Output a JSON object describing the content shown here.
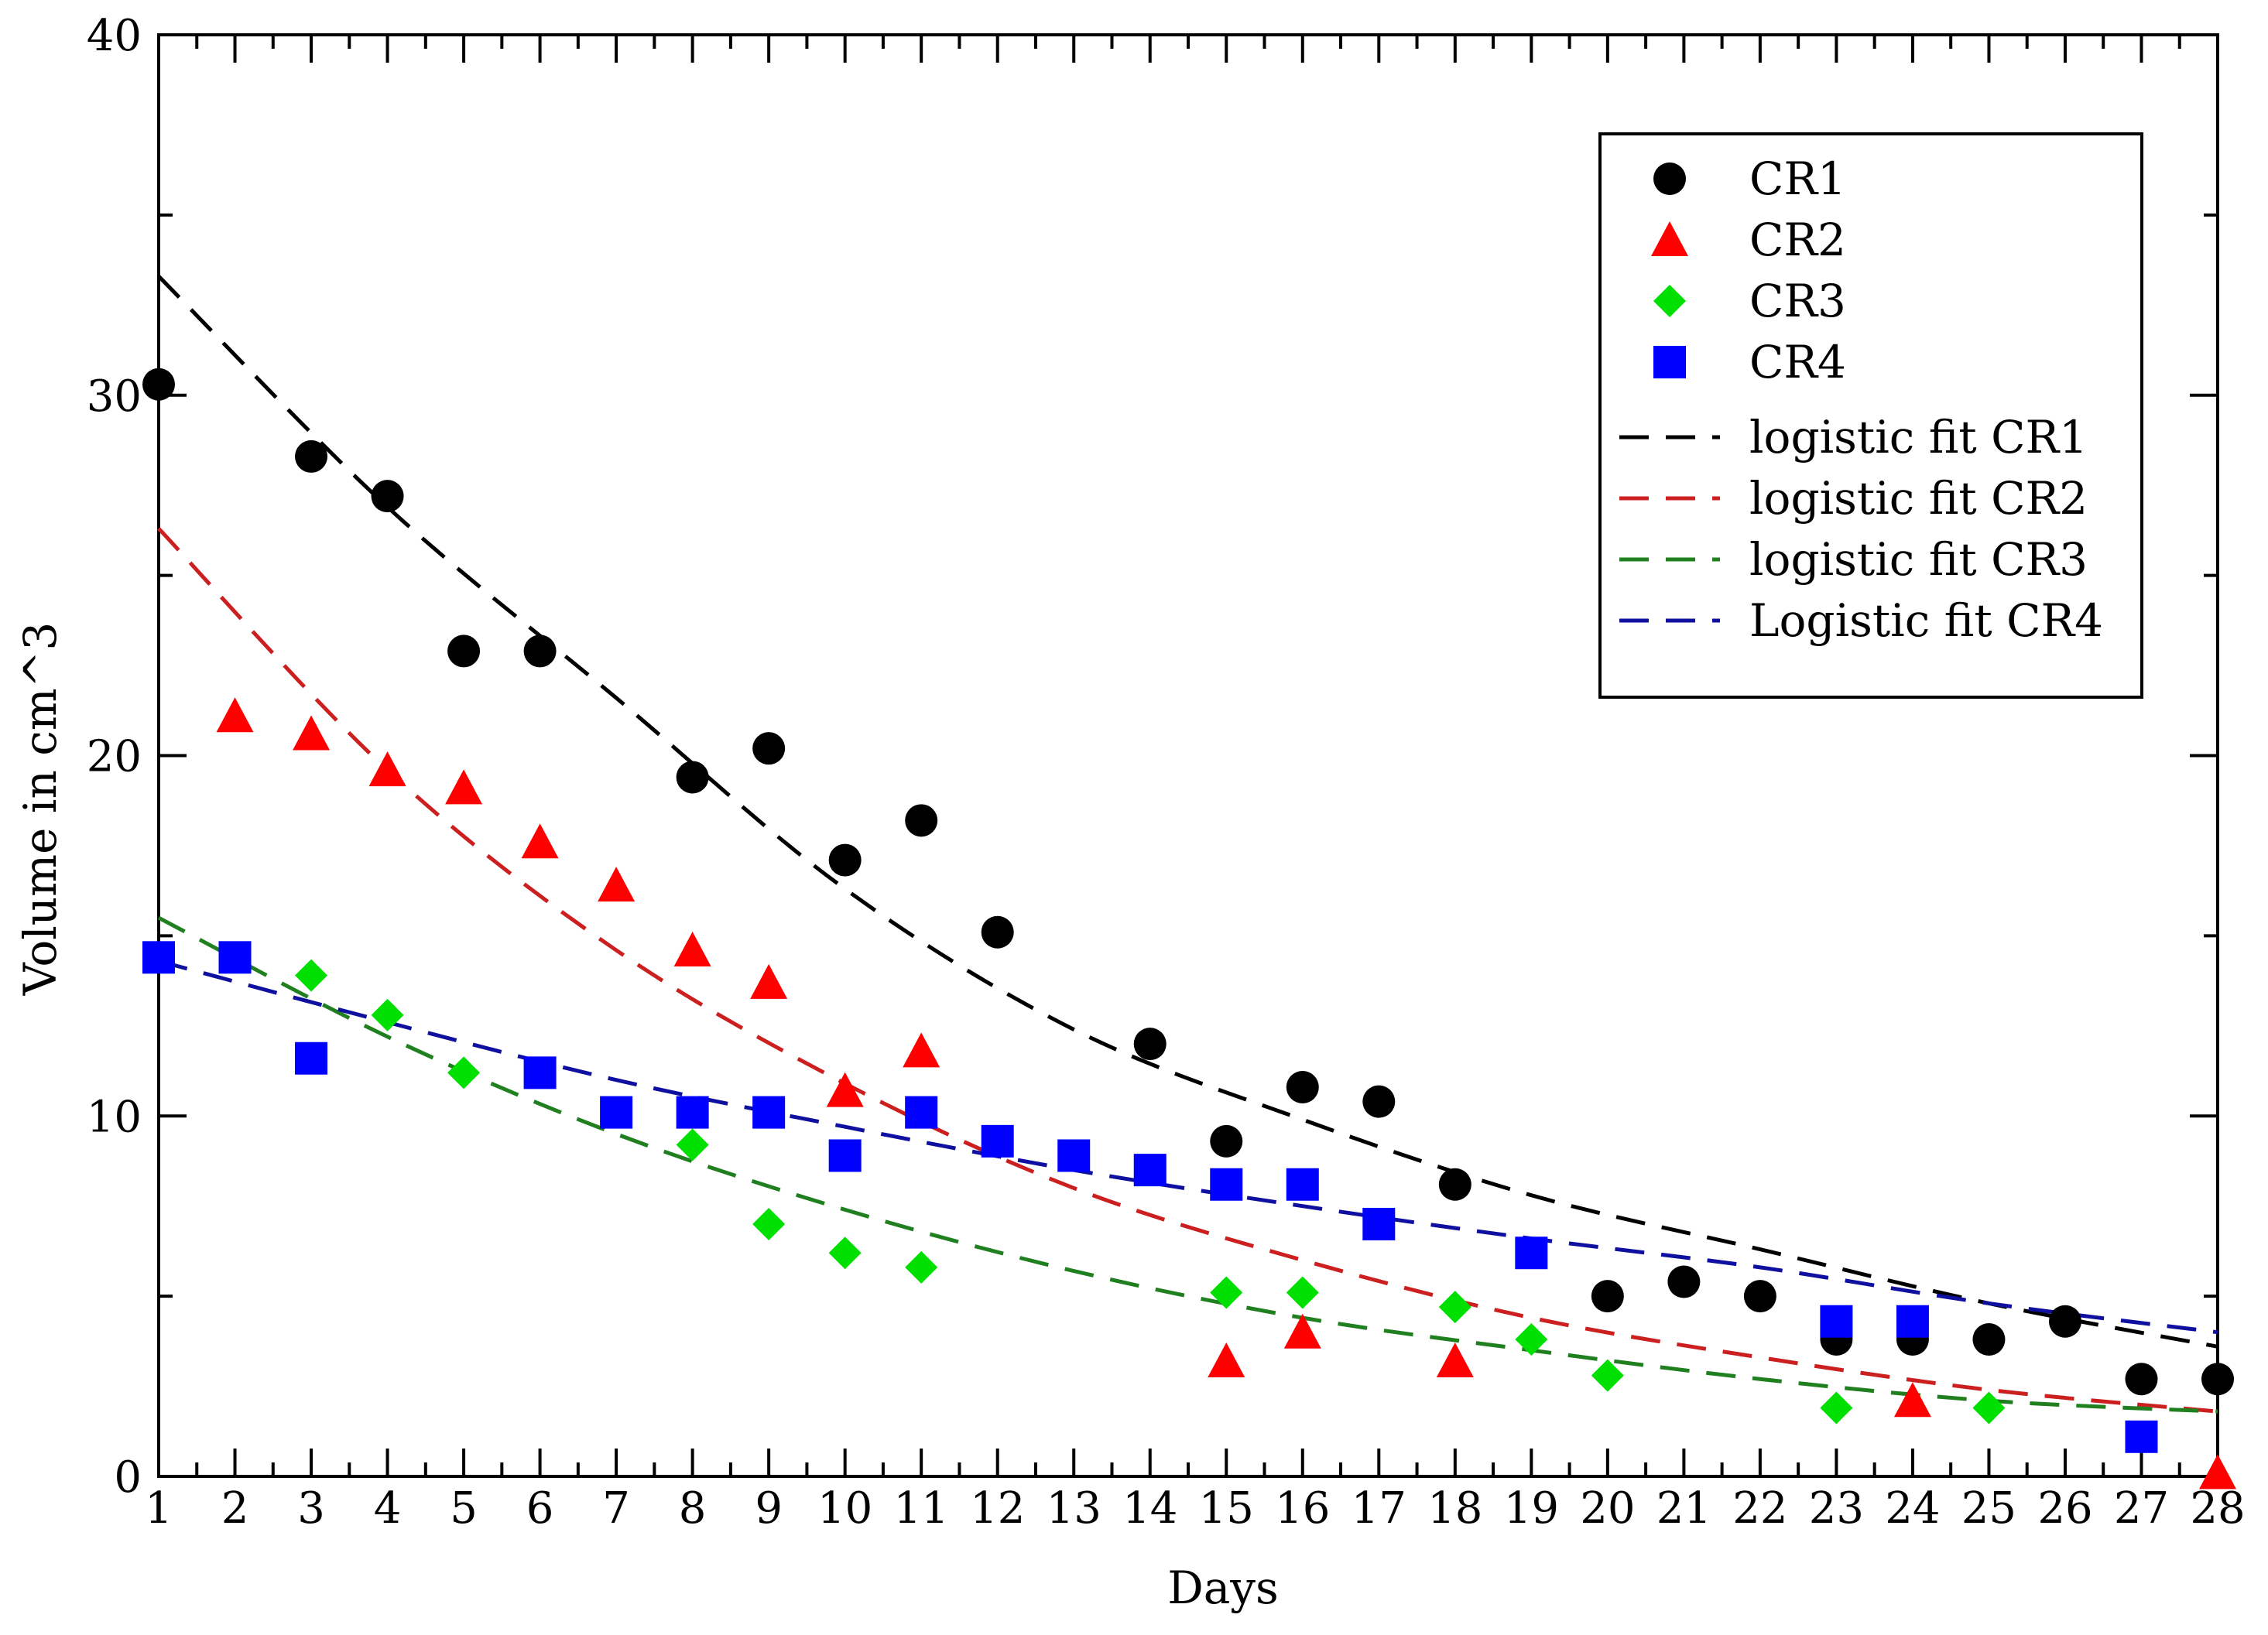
{
  "chart_data": {
    "type": "scatter",
    "title": "",
    "xlabel": "Days",
    "ylabel": "Volume in cm^3",
    "xlim": [
      1,
      28
    ],
    "ylim": [
      0,
      40
    ],
    "xticks": [
      "1",
      "2",
      "3",
      "4",
      "5",
      "6",
      "7",
      "8",
      "9",
      "10",
      "11",
      "12",
      "13",
      "14",
      "15",
      "16",
      "17",
      "18",
      "19",
      "20",
      "21",
      "22",
      "23",
      "24",
      "25",
      "26",
      "27",
      "28"
    ],
    "yticks": [
      "0",
      "10",
      "20",
      "30",
      "40"
    ],
    "grid": false,
    "legend_position": "top-right",
    "series": [
      {
        "name": "CR1",
        "marker": "circle",
        "color": "#000000",
        "x": [
          1,
          3,
          4,
          5,
          6,
          8,
          9,
          10,
          11,
          12,
          14,
          15,
          16,
          17,
          18,
          20,
          21,
          22,
          23,
          24,
          25,
          26,
          27,
          28
        ],
        "y": [
          30.3,
          28.3,
          27.2,
          22.9,
          22.9,
          19.4,
          20.2,
          17.1,
          18.2,
          15.1,
          12.0,
          9.3,
          10.8,
          10.4,
          8.1,
          5.0,
          5.4,
          5.0,
          3.8,
          3.8,
          3.8,
          4.3,
          2.7,
          2.7
        ]
      },
      {
        "name": "CR2",
        "marker": "triangle",
        "color": "#ff0000",
        "x": [
          2,
          3,
          4,
          5,
          6,
          7,
          8,
          9,
          10,
          11,
          15,
          16,
          18,
          24,
          28
        ],
        "y": [
          21.1,
          20.6,
          19.6,
          19.1,
          17.6,
          16.4,
          14.6,
          13.7,
          10.7,
          11.8,
          3.2,
          4.0,
          3.2,
          2.1,
          0.1
        ]
      },
      {
        "name": "CR3",
        "marker": "diamond",
        "color": "#00e000",
        "x": [
          3,
          4,
          5,
          8,
          9,
          10,
          11,
          15,
          16,
          18,
          19,
          20,
          23,
          25
        ],
        "y": [
          13.9,
          12.8,
          11.2,
          9.2,
          7.0,
          6.2,
          5.8,
          5.1,
          5.1,
          4.7,
          3.8,
          2.8,
          1.9,
          1.9
        ]
      },
      {
        "name": "CR4",
        "marker": "square",
        "color": "#0000ff",
        "x": [
          1,
          2,
          3,
          6,
          7,
          8,
          9,
          10,
          11,
          12,
          13,
          14,
          15,
          16,
          17,
          19,
          23,
          24,
          27
        ],
        "y": [
          14.4,
          14.4,
          11.6,
          11.2,
          10.1,
          10.1,
          10.1,
          8.9,
          10.1,
          9.3,
          8.9,
          8.5,
          8.1,
          8.1,
          7.0,
          6.2,
          4.3,
          4.3,
          1.1
        ]
      }
    ],
    "fits": [
      {
        "name": "logistic fit CR1",
        "color": "#000000",
        "x": [
          1,
          4,
          7,
          10,
          13,
          16,
          19,
          22,
          25,
          28
        ],
        "y": [
          33.3,
          26.9,
          21.6,
          16.3,
          12.4,
          9.9,
          7.8,
          6.3,
          4.8,
          3.6
        ]
      },
      {
        "name": "logistic fit CR2",
        "color": "#cc2020",
        "x": [
          1,
          4,
          7,
          10,
          13,
          16,
          19,
          22,
          25,
          28
        ],
        "y": [
          26.3,
          19.6,
          14.6,
          10.9,
          8.0,
          6.0,
          4.4,
          3.3,
          2.4,
          1.8
        ]
      },
      {
        "name": "logistic fit CR3",
        "color": "#208020",
        "x": [
          1,
          4,
          7,
          10,
          13,
          16,
          19,
          22,
          25,
          28
        ],
        "y": [
          15.5,
          12.2,
          9.5,
          7.4,
          5.7,
          4.4,
          3.5,
          2.7,
          2.1,
          1.8
        ]
      },
      {
        "name": "Logistic fit CR4",
        "color": "#1010a0",
        "x": [
          1,
          4,
          7,
          10,
          13,
          16,
          19,
          22,
          25,
          28
        ],
        "y": [
          14.3,
          12.6,
          11.0,
          9.7,
          8.5,
          7.5,
          6.6,
          5.8,
          4.8,
          4.0
        ]
      }
    ]
  }
}
